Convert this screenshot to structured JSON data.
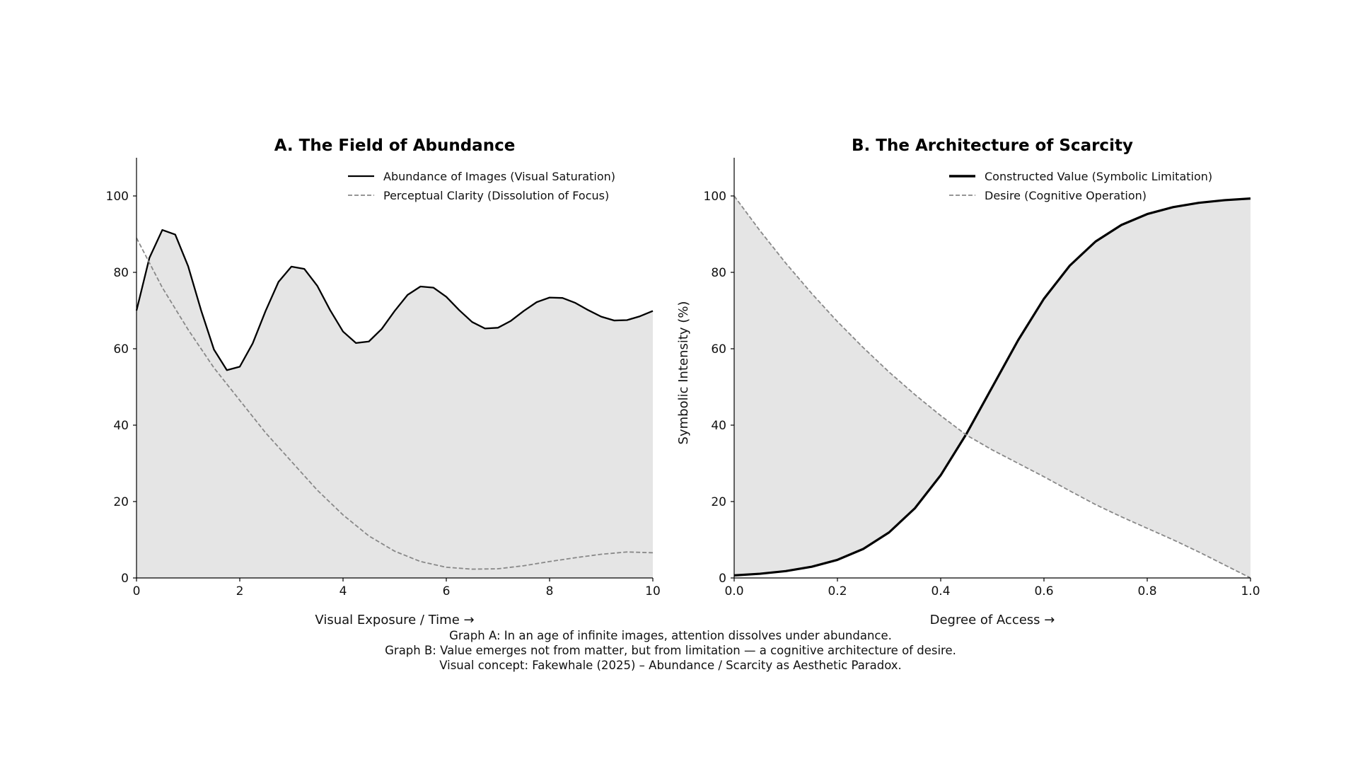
{
  "chart_data": [
    {
      "type": "line",
      "title": "A. The Field of Abundance",
      "xlabel": "Visual Exposure / Time →",
      "ylabel": "",
      "xlim": [
        0,
        10
      ],
      "ylim": [
        0,
        110
      ],
      "xticks": [
        "0",
        "2",
        "4",
        "6",
        "8",
        "10"
      ],
      "yticks": [
        "0",
        "20",
        "40",
        "60",
        "80",
        "100"
      ],
      "legend_position": "top-right",
      "fill": "under-first-series",
      "fill_color": "#e5e5e5",
      "series": [
        {
          "name": "Abundance of Images (Visual Saturation)",
          "style": "solid",
          "color": "#000000",
          "x": [
            0,
            0.25,
            0.5,
            0.75,
            1,
            1.25,
            1.5,
            1.75,
            2,
            2.25,
            2.5,
            2.75,
            3,
            3.25,
            3.5,
            3.75,
            4,
            4.25,
            4.5,
            4.75,
            5,
            5.25,
            5.5,
            5.75,
            6,
            6.25,
            6.5,
            6.75,
            7,
            7.25,
            7.5,
            7.75,
            8,
            8.25,
            8.5,
            8.75,
            9,
            9.25,
            9.5,
            9.75,
            10
          ],
          "y": [
            70,
            83.8,
            91.1,
            89.9,
            81.6,
            70.1,
            59.8,
            54.4,
            55.3,
            61.4,
            69.9,
            77.5,
            81.5,
            80.9,
            76.5,
            70.1,
            64.5,
            61.5,
            61.9,
            65.2,
            69.9,
            74.1,
            76.3,
            76.0,
            73.6,
            70.1,
            67.0,
            65.3,
            65.5,
            67.3,
            69.9,
            72.2,
            73.4,
            73.3,
            72.0,
            70.1,
            68.4,
            67.4,
            67.5,
            68.5,
            69.9
          ]
        },
        {
          "name": "Perceptual Clarity (Dissolution of Focus)",
          "style": "dashed",
          "color": "#888888",
          "x": [
            0,
            0.5,
            1,
            1.5,
            2,
            2.5,
            3,
            3.5,
            4,
            4.5,
            5,
            5.5,
            6,
            6.5,
            7,
            7.5,
            8,
            8.5,
            9,
            9.5,
            10
          ],
          "y": [
            89,
            76,
            65,
            55,
            46.5,
            38,
            30.5,
            23,
            16.5,
            11,
            7,
            4.3,
            2.8,
            2.3,
            2.4,
            3.2,
            4.3,
            5.3,
            6.2,
            6.8,
            6.6
          ]
        }
      ]
    },
    {
      "type": "line",
      "title": "B. The Architecture of Scarcity",
      "xlabel": "Degree of Access →",
      "ylabel": "Symbolic Intensity (%)",
      "xlim": [
        0,
        1
      ],
      "ylim": [
        0,
        110
      ],
      "xticks": [
        "0.0",
        "0.2",
        "0.4",
        "0.6",
        "0.8",
        "1.0"
      ],
      "yticks": [
        "0",
        "20",
        "40",
        "60",
        "80",
        "100"
      ],
      "legend_position": "top-right",
      "fill": "between-series",
      "fill_color": "#e5e5e5",
      "series": [
        {
          "name": "Constructed Value (Symbolic Limitation)",
          "style": "solid",
          "color": "#000000",
          "x": [
            0,
            0.05,
            0.1,
            0.15,
            0.2,
            0.25,
            0.3,
            0.35,
            0.4,
            0.45,
            0.5,
            0.55,
            0.6,
            0.65,
            0.7,
            0.75,
            0.8,
            0.85,
            0.9,
            0.95,
            1
          ],
          "y": [
            0.67,
            1.1,
            1.8,
            2.93,
            4.74,
            7.59,
            11.92,
            18.24,
            26.89,
            37.75,
            50,
            62.25,
            73.11,
            81.76,
            88.08,
            92.41,
            95.26,
            97.07,
            98.2,
            98.9,
            99.33
          ]
        },
        {
          "name": "Desire (Cognitive Operation)",
          "style": "dashed",
          "color": "#888888",
          "x": [
            0,
            0.05,
            0.1,
            0.15,
            0.2,
            0.25,
            0.3,
            0.35,
            0.4,
            0.45,
            0.5,
            0.55,
            0.6,
            0.65,
            0.7,
            0.75,
            0.8,
            0.85,
            0.9,
            0.95,
            1
          ],
          "y": [
            100,
            90.9,
            82.4,
            74.5,
            67.1,
            60.3,
            53.9,
            48.0,
            42.5,
            37.4,
            33.5,
            30.0,
            26.5,
            22.8,
            19.2,
            16.0,
            13.0,
            10.0,
            6.8,
            3.4,
            0
          ]
        }
      ]
    }
  ],
  "captions": [
    "Graph A: In an age of infinite images, attention dissolves under abundance.",
    "Graph B: Value emerges not from matter, but from limitation — a cognitive architecture of desire.",
    "Visual concept: Fakewhale (2025) – Abundance / Scarcity as Aesthetic Paradox."
  ]
}
